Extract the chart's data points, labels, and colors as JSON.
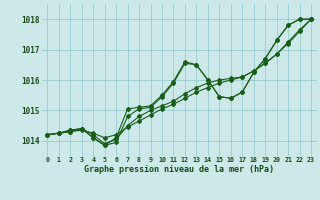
{
  "background_color": "#cce8e8",
  "grid_color": "#99cccc",
  "line_color": "#1a5c1a",
  "title": "Graphe pression niveau de la mer (hPa)",
  "ylim": [
    1013.5,
    1018.5
  ],
  "yticks": [
    1014,
    1015,
    1016,
    1017,
    1018
  ],
  "hours": [
    0,
    1,
    2,
    3,
    4,
    5,
    6,
    7,
    8,
    9,
    10,
    11,
    12,
    13,
    14,
    15,
    16,
    17,
    18,
    19,
    20,
    21,
    22,
    23
  ],
  "series": [
    [
      1014.2,
      1014.25,
      1014.3,
      1014.35,
      1014.25,
      1014.1,
      1014.2,
      1014.45,
      1014.65,
      1014.85,
      1015.05,
      1015.2,
      1015.4,
      1015.6,
      1015.75,
      1015.9,
      1016.0,
      1016.1,
      1016.3,
      1016.55,
      1016.85,
      1017.2,
      1017.6,
      1018.0
    ],
    [
      1014.2,
      1014.25,
      1014.3,
      1014.4,
      1014.2,
      1013.9,
      1014.05,
      1014.5,
      1014.8,
      1015.0,
      1015.15,
      1015.3,
      1015.55,
      1015.75,
      1015.9,
      1016.0,
      1016.05,
      1016.1,
      1016.3,
      1016.55,
      1016.85,
      1017.25,
      1017.65,
      1018.0
    ],
    [
      1014.2,
      1014.25,
      1014.35,
      1014.4,
      1014.1,
      1013.85,
      1013.95,
      1014.8,
      1015.05,
      1015.1,
      1015.45,
      1015.9,
      1016.55,
      1016.5,
      1016.0,
      1015.45,
      1015.4,
      1015.6,
      1016.25,
      1016.7,
      1017.3,
      1017.8,
      1018.0,
      1018.0
    ],
    [
      1014.2,
      1014.25,
      1014.35,
      1014.4,
      1014.1,
      1013.85,
      1014.1,
      1015.05,
      1015.1,
      1015.15,
      1015.5,
      1015.95,
      1016.6,
      1016.5,
      1016.0,
      1015.45,
      1015.4,
      1015.6,
      1016.25,
      1016.7,
      1017.3,
      1017.8,
      1018.0,
      1018.0
    ]
  ]
}
